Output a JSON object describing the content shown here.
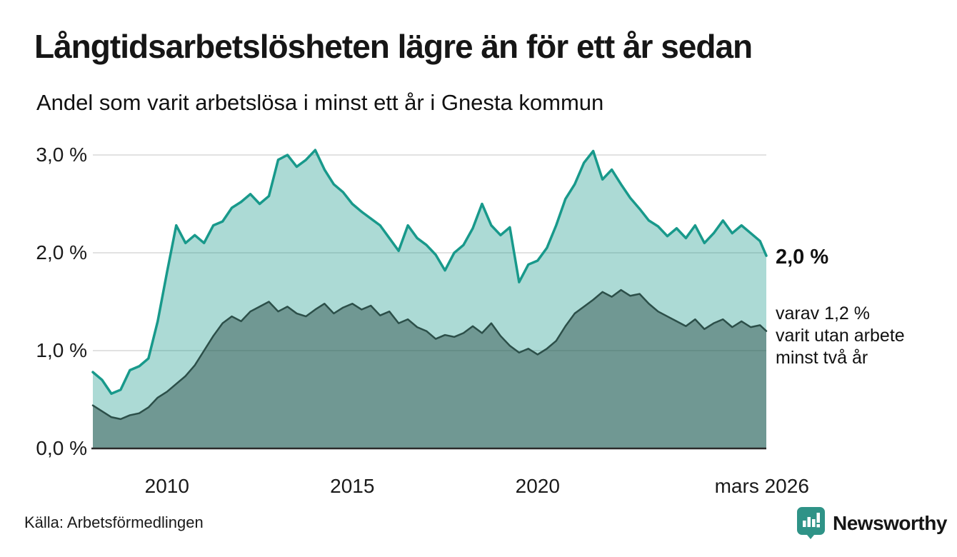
{
  "header": {
    "title": "Långtidsarbetslösheten lägre än för ett år sedan",
    "subtitle": "Andel som varit arbetslösa i minst ett år i Gnesta kommun"
  },
  "chart_data": {
    "type": "area",
    "title": "Långtidsarbetslösheten lägre än för ett år sedan",
    "subtitle": "Andel som varit arbetslösa i minst ett år i Gnesta kommun",
    "x_axis": {
      "min": 2008,
      "max": 2026.17,
      "ticks": [
        {
          "x": 2010,
          "label": "2010"
        },
        {
          "x": 2015,
          "label": "2015"
        },
        {
          "x": 2020,
          "label": "2020"
        },
        {
          "x": 2026.05,
          "label": "mars 2026"
        }
      ]
    },
    "y_axis": {
      "min": 0,
      "max": 3,
      "gridlines": true,
      "ticks": [
        {
          "y": 0,
          "label": "0,0 %"
        },
        {
          "y": 1,
          "label": "1,0 %"
        },
        {
          "y": 2,
          "label": "2,0 %"
        },
        {
          "y": 3,
          "label": "3,0 %"
        }
      ]
    },
    "x": [
      2008,
      2008.25,
      2008.5,
      2008.75,
      2009,
      2009.25,
      2009.5,
      2009.75,
      2010,
      2010.25,
      2010.5,
      2010.75,
      2011,
      2011.25,
      2011.5,
      2011.75,
      2012,
      2012.25,
      2012.5,
      2012.75,
      2013,
      2013.25,
      2013.5,
      2013.75,
      2014,
      2014.25,
      2014.5,
      2014.75,
      2015,
      2015.25,
      2015.5,
      2015.75,
      2016,
      2016.25,
      2016.5,
      2016.75,
      2017,
      2017.25,
      2017.5,
      2017.75,
      2018,
      2018.25,
      2018.5,
      2018.75,
      2019,
      2019.25,
      2019.5,
      2019.75,
      2020,
      2020.25,
      2020.5,
      2020.75,
      2021,
      2021.25,
      2021.5,
      2021.75,
      2022,
      2022.25,
      2022.5,
      2022.75,
      2023,
      2023.25,
      2023.5,
      2023.75,
      2024,
      2024.25,
      2024.5,
      2024.75,
      2025,
      2025.25,
      2025.5,
      2025.75,
      2026,
      2026.17
    ],
    "series": [
      {
        "name": "Andel som varit arbetslösa minst ett år",
        "line_color": "#18998b",
        "fill_color": "rgba(24,153,139,0.36)",
        "line_width": 3.5,
        "values": [
          0.78,
          0.7,
          0.56,
          0.6,
          0.8,
          0.84,
          0.92,
          1.3,
          1.8,
          2.28,
          2.1,
          2.18,
          2.1,
          2.28,
          2.32,
          2.46,
          2.52,
          2.6,
          2.5,
          2.58,
          2.95,
          3.0,
          2.88,
          2.95,
          3.05,
          2.85,
          2.7,
          2.62,
          2.5,
          2.42,
          2.35,
          2.28,
          2.15,
          2.02,
          2.28,
          2.15,
          2.08,
          1.98,
          1.82,
          2.0,
          2.08,
          2.25,
          2.5,
          2.28,
          2.18,
          2.26,
          1.7,
          1.88,
          1.92,
          2.05,
          2.28,
          2.55,
          2.7,
          2.92,
          3.04,
          2.75,
          2.85,
          2.7,
          2.56,
          2.45,
          2.33,
          2.27,
          2.17,
          2.25,
          2.15,
          2.28,
          2.1,
          2.2,
          2.33,
          2.2,
          2.28,
          2.2,
          2.12,
          1.97
        ]
      },
      {
        "name": "varav arbetslösa minst två år",
        "line_color": "#2c4f49",
        "fill_color": "rgba(44,79,73,0.47)",
        "line_width": 2.5,
        "values": [
          0.44,
          0.38,
          0.32,
          0.3,
          0.34,
          0.36,
          0.42,
          0.52,
          0.58,
          0.66,
          0.74,
          0.85,
          1.0,
          1.15,
          1.28,
          1.35,
          1.3,
          1.4,
          1.45,
          1.5,
          1.4,
          1.45,
          1.38,
          1.35,
          1.42,
          1.48,
          1.38,
          1.44,
          1.48,
          1.42,
          1.46,
          1.36,
          1.4,
          1.28,
          1.32,
          1.24,
          1.2,
          1.12,
          1.16,
          1.14,
          1.18,
          1.25,
          1.18,
          1.28,
          1.15,
          1.05,
          0.98,
          1.02,
          0.96,
          1.02,
          1.1,
          1.25,
          1.38,
          1.45,
          1.52,
          1.6,
          1.55,
          1.62,
          1.56,
          1.58,
          1.48,
          1.4,
          1.35,
          1.3,
          1.25,
          1.32,
          1.22,
          1.28,
          1.32,
          1.24,
          1.3,
          1.24,
          1.26,
          1.2
        ]
      }
    ],
    "end_labels": {
      "primary": "2,0 %",
      "secondary": [
        "varav 1,2 %",
        "varit utan arbete",
        "minst två år"
      ]
    },
    "grid_color": "#d8d8d8",
    "baseline_color": "#2b2b2b"
  },
  "footer": {
    "source": "Källa: Arbetsförmedlingen"
  },
  "logo": {
    "text": "Newsworthy",
    "color": "#2f9387"
  }
}
